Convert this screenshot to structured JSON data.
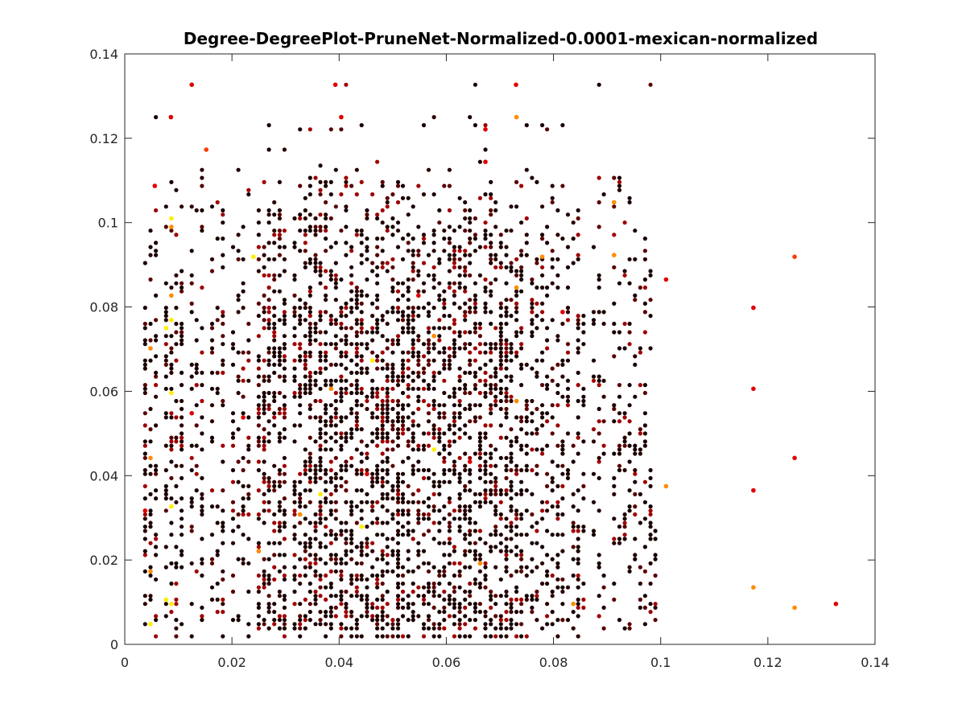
{
  "chart_data": {
    "type": "scatter",
    "title": "Degree-DegreePlot-PruneNet-Normalized-0.0001-mexican-normalized",
    "xlabel": "",
    "ylabel": "",
    "xlim": [
      0,
      0.14
    ],
    "ylim": [
      0,
      0.14
    ],
    "x_ticks": [
      "0",
      "0.02",
      "0.04",
      "0.06",
      "0.08",
      "0.1",
      "0.12",
      "0.14"
    ],
    "y_ticks": [
      "0",
      "0.02",
      "0.04",
      "0.06",
      "0.08",
      "0.1",
      "0.12",
      "0.14"
    ],
    "grid": false,
    "box": true,
    "colormap": "hot",
    "colors": {
      "dark": "#1a0000",
      "dark_red": "#5a0000",
      "red": "#e00000",
      "orange_red": "#ff3a00",
      "orange": "#ff8c00",
      "yellow": "#ffee00",
      "axis": "#262626"
    },
    "x_grid": [
      0.0038,
      0.0048,
      0.0058,
      0.0077,
      0.0087,
      0.0096,
      0.0106,
      0.0125,
      0.0134,
      0.0144,
      0.0163,
      0.0173,
      0.0183,
      0.0202,
      0.0212,
      0.0221,
      0.0231,
      0.025,
      0.026,
      0.0269,
      0.0279,
      0.0289,
      0.0298,
      0.0317,
      0.0327,
      0.0337,
      0.0346,
      0.0356,
      0.0365,
      0.0375,
      0.0385,
      0.0394,
      0.0404,
      0.0413,
      0.0423,
      0.0433,
      0.0442,
      0.0452,
      0.0462,
      0.0471,
      0.0481,
      0.049,
      0.05,
      0.051,
      0.0519,
      0.0529,
      0.0538,
      0.0548,
      0.0558,
      0.0567,
      0.0577,
      0.0587,
      0.0596,
      0.0606,
      0.0615,
      0.0625,
      0.0635,
      0.0644,
      0.0654,
      0.0663,
      0.0673,
      0.0683,
      0.0692,
      0.0702,
      0.0712,
      0.0721,
      0.0731,
      0.074,
      0.075,
      0.076,
      0.0769,
      0.0779,
      0.0788,
      0.0798,
      0.0808,
      0.0817,
      0.0827,
      0.0837,
      0.0846,
      0.0856,
      0.0875,
      0.0885,
      0.0894,
      0.0913,
      0.0923,
      0.0933,
      0.0942,
      0.0952,
      0.0962,
      0.0971,
      0.0981,
      0.099,
      0.1,
      0.101,
      0.1029,
      0.1038,
      0.1048,
      0.1058,
      0.1067,
      0.1077,
      0.1087,
      0.1096,
      0.1135,
      0.1144,
      0.1173,
      0.1221,
      0.1231,
      0.125,
      0.1327
    ],
    "y_grid": [
      0.0019,
      0.0038,
      0.0048,
      0.0058,
      0.0067,
      0.0077,
      0.0087,
      0.0096,
      0.0106,
      0.0115,
      0.0125,
      0.0135,
      0.0144,
      0.0154,
      0.0163,
      0.0173,
      0.0183,
      0.0192,
      0.0202,
      0.0212,
      0.0221,
      0.0231,
      0.024,
      0.025,
      0.026,
      0.0269,
      0.0279,
      0.0288,
      0.0298,
      0.0308,
      0.0317,
      0.0327,
      0.0337,
      0.0346,
      0.0356,
      0.0365,
      0.0375,
      0.0385,
      0.0394,
      0.0404,
      0.0413,
      0.0423,
      0.0433,
      0.0442,
      0.0452,
      0.0462,
      0.0471,
      0.0481,
      0.049,
      0.05,
      0.051,
      0.0519,
      0.0529,
      0.0538,
      0.0548,
      0.0558,
      0.0567,
      0.0577,
      0.0587,
      0.0596,
      0.0606,
      0.0615,
      0.0625,
      0.0635,
      0.0644,
      0.0654,
      0.0663,
      0.0673,
      0.0683,
      0.0692,
      0.0702,
      0.0712,
      0.0721,
      0.0731,
      0.074,
      0.075,
      0.076,
      0.0769,
      0.0779,
      0.0788,
      0.0798,
      0.0808,
      0.0817,
      0.0827,
      0.0837,
      0.0846,
      0.0856,
      0.0865,
      0.0875,
      0.0885,
      0.0894,
      0.0904,
      0.0913,
      0.0923,
      0.0933,
      0.0942,
      0.0952,
      0.0962,
      0.0971,
      0.0981,
      0.099,
      0.1,
      0.101,
      0.1019,
      0.1029,
      0.1038,
      0.1048,
      0.1058,
      0.1067,
      0.1077,
      0.1087,
      0.1096,
      0.1106,
      0.1125,
      0.1135,
      0.1144,
      0.1173,
      0.1221,
      0.1231,
      0.125,
      0.1327
    ],
    "point_count": 3100,
    "highlighted_points": [
      {
        "x": 0.0125,
        "y": 0.1327,
        "color": "red"
      },
      {
        "x": 0.0393,
        "y": 0.1327,
        "color": "red"
      },
      {
        "x": 0.073,
        "y": 0.1327,
        "color": "red"
      },
      {
        "x": 0.0731,
        "y": 0.125,
        "color": "orange"
      },
      {
        "x": 0.0086,
        "y": 0.125,
        "color": "red"
      },
      {
        "x": 0.0404,
        "y": 0.125,
        "color": "red"
      },
      {
        "x": 0.0673,
        "y": 0.1221,
        "color": "red"
      },
      {
        "x": 0.0152,
        "y": 0.1173,
        "color": "orange_red"
      },
      {
        "x": 0.0673,
        "y": 0.1144,
        "color": "red"
      },
      {
        "x": 0.0056,
        "y": 0.1087,
        "color": "red"
      },
      {
        "x": 0.0087,
        "y": 0.101,
        "color": "yellow"
      },
      {
        "x": 0.0087,
        "y": 0.099,
        "color": "orange"
      },
      {
        "x": 0.024,
        "y": 0.0919,
        "color": "yellow"
      },
      {
        "x": 0.0779,
        "y": 0.0919,
        "color": "orange"
      },
      {
        "x": 0.0913,
        "y": 0.0923,
        "color": "orange"
      },
      {
        "x": 0.0913,
        "y": 0.1048,
        "color": "orange"
      },
      {
        "x": 0.125,
        "y": 0.0919,
        "color": "orange_red"
      },
      {
        "x": 0.0087,
        "y": 0.0827,
        "color": "orange"
      },
      {
        "x": 0.0731,
        "y": 0.0846,
        "color": "orange"
      },
      {
        "x": 0.0048,
        "y": 0.0702,
        "color": "orange"
      },
      {
        "x": 0.0077,
        "y": 0.075,
        "color": "yellow"
      },
      {
        "x": 0.0087,
        "y": 0.0769,
        "color": "yellow"
      },
      {
        "x": 0.0087,
        "y": 0.0596,
        "color": "yellow"
      },
      {
        "x": 0.0385,
        "y": 0.0606,
        "color": "orange"
      },
      {
        "x": 0.0462,
        "y": 0.0673,
        "color": "yellow"
      },
      {
        "x": 0.0577,
        "y": 0.0731,
        "color": "orange"
      },
      {
        "x": 0.0731,
        "y": 0.0577,
        "color": "orange"
      },
      {
        "x": 0.1173,
        "y": 0.0798,
        "color": "red"
      },
      {
        "x": 0.1173,
        "y": 0.0606,
        "color": "red"
      },
      {
        "x": 0.0048,
        "y": 0.0442,
        "color": "orange"
      },
      {
        "x": 0.0577,
        "y": 0.0462,
        "color": "yellow"
      },
      {
        "x": 0.0365,
        "y": 0.0356,
        "color": "yellow"
      },
      {
        "x": 0.0087,
        "y": 0.0327,
        "color": "yellow"
      },
      {
        "x": 0.0442,
        "y": 0.0279,
        "color": "yellow"
      },
      {
        "x": 0.0327,
        "y": 0.0308,
        "color": "orange"
      },
      {
        "x": 0.025,
        "y": 0.0221,
        "color": "orange"
      },
      {
        "x": 0.0663,
        "y": 0.0192,
        "color": "orange"
      },
      {
        "x": 0.125,
        "y": 0.0442,
        "color": "red"
      },
      {
        "x": 0.1173,
        "y": 0.0365,
        "color": "red"
      },
      {
        "x": 0.101,
        "y": 0.0375,
        "color": "orange"
      },
      {
        "x": 0.0087,
        "y": 0.0096,
        "color": "yellow"
      },
      {
        "x": 0.0077,
        "y": 0.0106,
        "color": "yellow"
      },
      {
        "x": 0.0048,
        "y": 0.0048,
        "color": "yellow"
      },
      {
        "x": 0.0048,
        "y": 0.0173,
        "color": "orange"
      },
      {
        "x": 0.0837,
        "y": 0.0096,
        "color": "orange"
      },
      {
        "x": 0.1173,
        "y": 0.0135,
        "color": "orange"
      },
      {
        "x": 0.125,
        "y": 0.0087,
        "color": "orange"
      },
      {
        "x": 0.0038,
        "y": 0.0317,
        "color": "red"
      },
      {
        "x": 0.0125,
        "y": 0.0548,
        "color": "red"
      },
      {
        "x": 0.0221,
        "y": 0.0538,
        "color": "red"
      },
      {
        "x": 0.0452,
        "y": 0.0404,
        "color": "red"
      },
      {
        "x": 0.0548,
        "y": 0.0827,
        "color": "red"
      },
      {
        "x": 0.0644,
        "y": 0.0433,
        "color": "red"
      },
      {
        "x": 0.0817,
        "y": 0.0788,
        "color": "red"
      },
      {
        "x": 0.101,
        "y": 0.0865,
        "color": "red"
      },
      {
        "x": 0.1327,
        "y": 0.0096,
        "color": "red"
      }
    ]
  }
}
